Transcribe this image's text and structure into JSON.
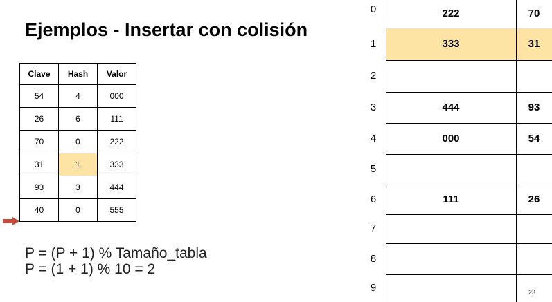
{
  "title": "Ejemplos - Insertar con colisión",
  "key_table": {
    "headers": [
      "Clave",
      "Hash",
      "Valor"
    ],
    "rows": [
      [
        "54",
        "4",
        "000"
      ],
      [
        "26",
        "6",
        "111"
      ],
      [
        "70",
        "0",
        "222"
      ],
      [
        "31",
        "1",
        "333"
      ],
      [
        "93",
        "3",
        "444"
      ],
      [
        "40",
        "0",
        "555"
      ]
    ],
    "highlight_color": "#fde4a5",
    "arrow_color": "#c0503c"
  },
  "formulas": {
    "line1": "P = (P + 1) % Tamaño_tabla",
    "line2": "P = (1 + 1) % 10 = 2"
  },
  "hash_table": {
    "slots": [
      {
        "index": "0",
        "value": "222",
        "key": "70"
      },
      {
        "index": "1",
        "value": "333",
        "key": "31"
      },
      {
        "index": "2",
        "value": "",
        "key": ""
      },
      {
        "index": "3",
        "value": "444",
        "key": "93"
      },
      {
        "index": "4",
        "value": "000",
        "key": "54"
      },
      {
        "index": "5",
        "value": "",
        "key": ""
      },
      {
        "index": "6",
        "value": "111",
        "key": "26"
      },
      {
        "index": "7",
        "value": "",
        "key": ""
      },
      {
        "index": "8",
        "value": "",
        "key": ""
      },
      {
        "index": "9",
        "value": "",
        "key": ""
      }
    ]
  },
  "page_number": "23"
}
